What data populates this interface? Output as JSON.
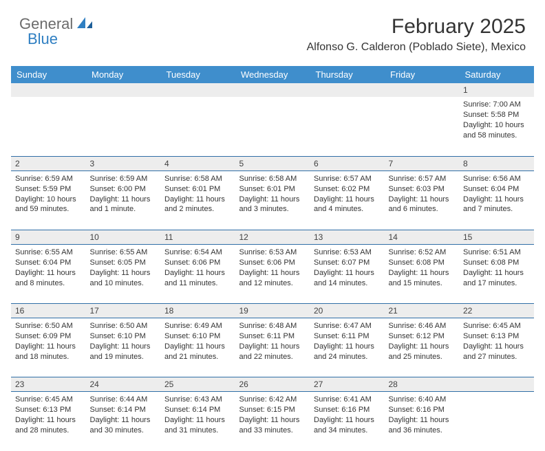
{
  "brand": {
    "word1": "General",
    "word2": "Blue"
  },
  "title": "February 2025",
  "location": "Alfonso G. Calderon (Poblado Siete), Mexico",
  "header_bg": "#3f8ecc",
  "daynum_bg": "#ededed",
  "rule_color": "#2f6ea6",
  "dayHeaders": [
    "Sunday",
    "Monday",
    "Tuesday",
    "Wednesday",
    "Thursday",
    "Friday",
    "Saturday"
  ],
  "weeks": [
    {
      "nums": [
        "",
        "",
        "",
        "",
        "",
        "",
        "1"
      ],
      "cells": [
        null,
        null,
        null,
        null,
        null,
        null,
        {
          "sunrise": "Sunrise: 7:00 AM",
          "sunset": "Sunset: 5:58 PM",
          "day1": "Daylight: 10 hours",
          "day2": "and 58 minutes."
        }
      ]
    },
    {
      "nums": [
        "2",
        "3",
        "4",
        "5",
        "6",
        "7",
        "8"
      ],
      "cells": [
        {
          "sunrise": "Sunrise: 6:59 AM",
          "sunset": "Sunset: 5:59 PM",
          "day1": "Daylight: 10 hours",
          "day2": "and 59 minutes."
        },
        {
          "sunrise": "Sunrise: 6:59 AM",
          "sunset": "Sunset: 6:00 PM",
          "day1": "Daylight: 11 hours",
          "day2": "and 1 minute."
        },
        {
          "sunrise": "Sunrise: 6:58 AM",
          "sunset": "Sunset: 6:01 PM",
          "day1": "Daylight: 11 hours",
          "day2": "and 2 minutes."
        },
        {
          "sunrise": "Sunrise: 6:58 AM",
          "sunset": "Sunset: 6:01 PM",
          "day1": "Daylight: 11 hours",
          "day2": "and 3 minutes."
        },
        {
          "sunrise": "Sunrise: 6:57 AM",
          "sunset": "Sunset: 6:02 PM",
          "day1": "Daylight: 11 hours",
          "day2": "and 4 minutes."
        },
        {
          "sunrise": "Sunrise: 6:57 AM",
          "sunset": "Sunset: 6:03 PM",
          "day1": "Daylight: 11 hours",
          "day2": "and 6 minutes."
        },
        {
          "sunrise": "Sunrise: 6:56 AM",
          "sunset": "Sunset: 6:04 PM",
          "day1": "Daylight: 11 hours",
          "day2": "and 7 minutes."
        }
      ]
    },
    {
      "nums": [
        "9",
        "10",
        "11",
        "12",
        "13",
        "14",
        "15"
      ],
      "cells": [
        {
          "sunrise": "Sunrise: 6:55 AM",
          "sunset": "Sunset: 6:04 PM",
          "day1": "Daylight: 11 hours",
          "day2": "and 8 minutes."
        },
        {
          "sunrise": "Sunrise: 6:55 AM",
          "sunset": "Sunset: 6:05 PM",
          "day1": "Daylight: 11 hours",
          "day2": "and 10 minutes."
        },
        {
          "sunrise": "Sunrise: 6:54 AM",
          "sunset": "Sunset: 6:06 PM",
          "day1": "Daylight: 11 hours",
          "day2": "and 11 minutes."
        },
        {
          "sunrise": "Sunrise: 6:53 AM",
          "sunset": "Sunset: 6:06 PM",
          "day1": "Daylight: 11 hours",
          "day2": "and 12 minutes."
        },
        {
          "sunrise": "Sunrise: 6:53 AM",
          "sunset": "Sunset: 6:07 PM",
          "day1": "Daylight: 11 hours",
          "day2": "and 14 minutes."
        },
        {
          "sunrise": "Sunrise: 6:52 AM",
          "sunset": "Sunset: 6:08 PM",
          "day1": "Daylight: 11 hours",
          "day2": "and 15 minutes."
        },
        {
          "sunrise": "Sunrise: 6:51 AM",
          "sunset": "Sunset: 6:08 PM",
          "day1": "Daylight: 11 hours",
          "day2": "and 17 minutes."
        }
      ]
    },
    {
      "nums": [
        "16",
        "17",
        "18",
        "19",
        "20",
        "21",
        "22"
      ],
      "cells": [
        {
          "sunrise": "Sunrise: 6:50 AM",
          "sunset": "Sunset: 6:09 PM",
          "day1": "Daylight: 11 hours",
          "day2": "and 18 minutes."
        },
        {
          "sunrise": "Sunrise: 6:50 AM",
          "sunset": "Sunset: 6:10 PM",
          "day1": "Daylight: 11 hours",
          "day2": "and 19 minutes."
        },
        {
          "sunrise": "Sunrise: 6:49 AM",
          "sunset": "Sunset: 6:10 PM",
          "day1": "Daylight: 11 hours",
          "day2": "and 21 minutes."
        },
        {
          "sunrise": "Sunrise: 6:48 AM",
          "sunset": "Sunset: 6:11 PM",
          "day1": "Daylight: 11 hours",
          "day2": "and 22 minutes."
        },
        {
          "sunrise": "Sunrise: 6:47 AM",
          "sunset": "Sunset: 6:11 PM",
          "day1": "Daylight: 11 hours",
          "day2": "and 24 minutes."
        },
        {
          "sunrise": "Sunrise: 6:46 AM",
          "sunset": "Sunset: 6:12 PM",
          "day1": "Daylight: 11 hours",
          "day2": "and 25 minutes."
        },
        {
          "sunrise": "Sunrise: 6:45 AM",
          "sunset": "Sunset: 6:13 PM",
          "day1": "Daylight: 11 hours",
          "day2": "and 27 minutes."
        }
      ]
    },
    {
      "nums": [
        "23",
        "24",
        "25",
        "26",
        "27",
        "28",
        ""
      ],
      "cells": [
        {
          "sunrise": "Sunrise: 6:45 AM",
          "sunset": "Sunset: 6:13 PM",
          "day1": "Daylight: 11 hours",
          "day2": "and 28 minutes."
        },
        {
          "sunrise": "Sunrise: 6:44 AM",
          "sunset": "Sunset: 6:14 PM",
          "day1": "Daylight: 11 hours",
          "day2": "and 30 minutes."
        },
        {
          "sunrise": "Sunrise: 6:43 AM",
          "sunset": "Sunset: 6:14 PM",
          "day1": "Daylight: 11 hours",
          "day2": "and 31 minutes."
        },
        {
          "sunrise": "Sunrise: 6:42 AM",
          "sunset": "Sunset: 6:15 PM",
          "day1": "Daylight: 11 hours",
          "day2": "and 33 minutes."
        },
        {
          "sunrise": "Sunrise: 6:41 AM",
          "sunset": "Sunset: 6:16 PM",
          "day1": "Daylight: 11 hours",
          "day2": "and 34 minutes."
        },
        {
          "sunrise": "Sunrise: 6:40 AM",
          "sunset": "Sunset: 6:16 PM",
          "day1": "Daylight: 11 hours",
          "day2": "and 36 minutes."
        },
        null
      ]
    }
  ]
}
